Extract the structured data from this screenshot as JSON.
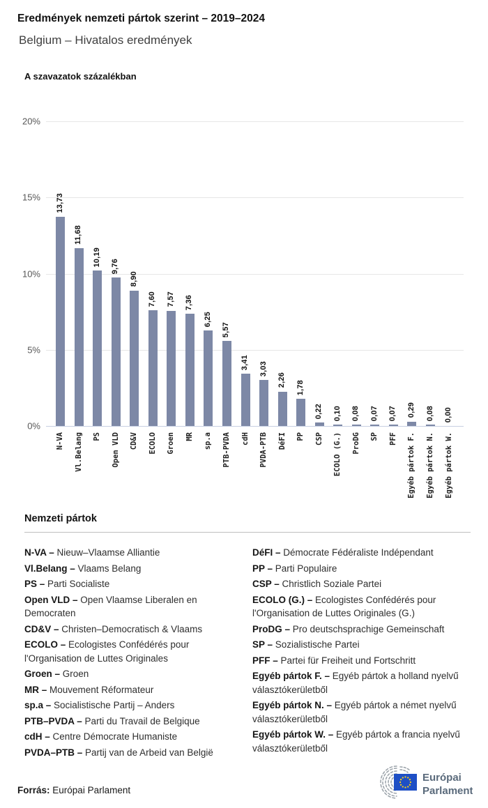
{
  "header": {
    "title": "Eredmények nemzeti pártok szerint – 2019–2024",
    "subtitle": "Belgium – Hivatalos eredmények"
  },
  "chart_data": {
    "type": "bar",
    "title": "A szavazatok százalékban",
    "categories": [
      "N-VA",
      "Vl.Belang",
      "PS",
      "Open VLD",
      "CD&V",
      "ECOLO",
      "Groen",
      "MR",
      "sp.a",
      "PTB-PVDA",
      "cdH",
      "PVDA-PTB",
      "DéFI",
      "PP",
      "CSP",
      "ECOLO (G.)",
      "ProDG",
      "SP",
      "PFF",
      "Egyéb pártok F.",
      "Egyéb pártok N.",
      "Egyéb pártok W."
    ],
    "values": [
      13.73,
      11.68,
      10.19,
      9.76,
      8.9,
      7.6,
      7.57,
      7.36,
      6.25,
      5.57,
      3.41,
      3.03,
      2.26,
      1.78,
      0.22,
      0.1,
      0.08,
      0.07,
      0.07,
      0.29,
      0.08,
      0.0
    ],
    "value_labels": [
      "13,73",
      "11,68",
      "10,19",
      "9,76",
      "8,90",
      "7,60",
      "7,57",
      "7,36",
      "6,25",
      "5,57",
      "3,41",
      "3,03",
      "2,26",
      "1,78",
      "0,22",
      "0,10",
      "0,08",
      "0,07",
      "0,07",
      "0,29",
      "0,08",
      "0,00"
    ],
    "yticks": [
      {
        "label": "0%",
        "value": 0
      },
      {
        "label": "5%",
        "value": 5
      },
      {
        "label": "10%",
        "value": 10
      },
      {
        "label": "15%",
        "value": 15
      },
      {
        "label": "20%",
        "value": 20
      }
    ],
    "ylim": [
      0,
      20
    ],
    "grid": "horizontal",
    "legend_position": "none",
    "bar_color": "#7d88a6"
  },
  "legend": {
    "heading": "Nemzeti pártok",
    "separator": "–",
    "columns": [
      [
        {
          "abbr": "N-VA",
          "name": "Nieuw–Vlaamse Alliantie"
        },
        {
          "abbr": "Vl.Belang",
          "name": "Vlaams Belang"
        },
        {
          "abbr": "PS",
          "name": "Parti Socialiste"
        },
        {
          "abbr": "Open VLD",
          "name": "Open Vlaamse Liberalen en Democraten"
        },
        {
          "abbr": "CD&V",
          "name": "Christen–Democratisch & Vlaams"
        },
        {
          "abbr": "ECOLO",
          "name": "Ecologistes Confédérés pour l'Organisation de Luttes Originales"
        },
        {
          "abbr": "Groen",
          "name": "Groen"
        },
        {
          "abbr": "MR",
          "name": "Mouvement Réformateur"
        },
        {
          "abbr": "sp.a",
          "name": "Socialistische Partij – Anders"
        },
        {
          "abbr": "PTB–PVDA",
          "name": "Parti du Travail de Belgique"
        },
        {
          "abbr": "cdH",
          "name": "Centre Démocrate Humaniste"
        },
        {
          "abbr": "PVDA–PTB",
          "name": "Partij van de Arbeid van België"
        }
      ],
      [
        {
          "abbr": "DéFI",
          "name": "Démocrate Fédéraliste Indépendant"
        },
        {
          "abbr": "PP",
          "name": "Parti Populaire"
        },
        {
          "abbr": "CSP",
          "name": "Christlich Soziale Partei"
        },
        {
          "abbr": "ECOLO (G.)",
          "name": "Ecologistes Confédérés pour l'Organisation de Luttes Originales (G.)"
        },
        {
          "abbr": "ProDG",
          "name": "Pro deutschsprachige Gemeinschaft"
        },
        {
          "abbr": "SP",
          "name": "Sozialistische Partei"
        },
        {
          "abbr": "PFF",
          "name": "Partei für Freiheit und Fortschritt"
        },
        {
          "abbr": "Egyéb pártok F.",
          "name": "Egyéb pártok a holland nyelvű választókerületből"
        },
        {
          "abbr": "Egyéb pártok N.",
          "name": "Egyéb pártok a német nyelvű választókerületből"
        },
        {
          "abbr": "Egyéb pártok W.",
          "name": "Egyéb pártok a francia nyelvű választókerületből"
        }
      ]
    ]
  },
  "footer": {
    "source_label": "Forrás:",
    "source_text": "Európai Parlament",
    "logo_line1": "Európai",
    "logo_line2": "Parlament"
  },
  "colors": {
    "bar": "#7d88a6",
    "baseline": "#c7cfe2",
    "gridline": "#e6e6e6",
    "logo_text": "#5a6a7b",
    "flag_blue": "#1e4fc5",
    "flag_stars": "#fbd116"
  }
}
